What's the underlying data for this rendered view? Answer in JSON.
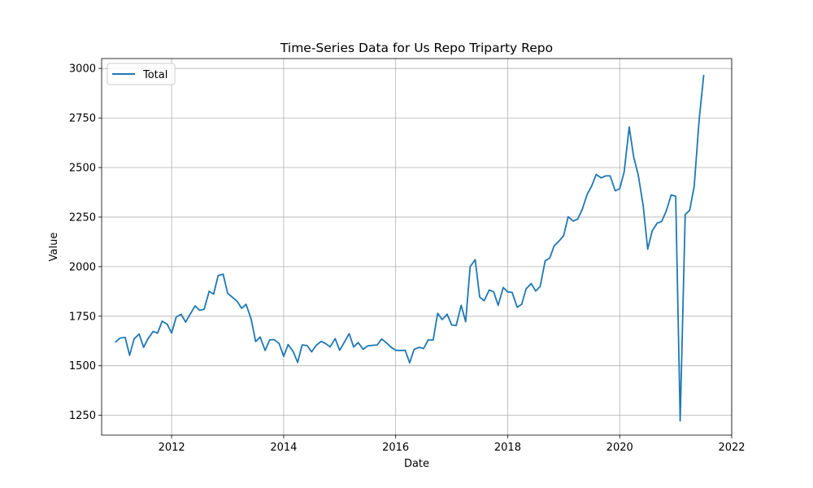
{
  "chart_data": {
    "type": "line",
    "title": "Time-Series Data for Us Repo Triparty Repo",
    "xlabel": "Date",
    "ylabel": "Value",
    "xlim": [
      2010.75,
      2022.0
    ],
    "ylim": [
      1150,
      3050
    ],
    "x_ticks": [
      2012,
      2014,
      2016,
      2018,
      2020,
      2022
    ],
    "y_ticks": [
      1250,
      1500,
      1750,
      2000,
      2250,
      2500,
      2750,
      3000
    ],
    "grid": true,
    "legend_position": "top-left",
    "series": [
      {
        "name": "Total",
        "color": "#1f77b4",
        "points": [
          [
            2011.0,
            1620
          ],
          [
            2011.08,
            1640
          ],
          [
            2011.17,
            1643
          ],
          [
            2011.25,
            1553
          ],
          [
            2011.33,
            1636
          ],
          [
            2011.42,
            1660
          ],
          [
            2011.5,
            1593
          ],
          [
            2011.58,
            1637
          ],
          [
            2011.67,
            1673
          ],
          [
            2011.75,
            1665
          ],
          [
            2011.83,
            1725
          ],
          [
            2011.92,
            1710
          ],
          [
            2012.0,
            1665
          ],
          [
            2012.08,
            1745
          ],
          [
            2012.17,
            1760
          ],
          [
            2012.25,
            1720
          ],
          [
            2012.33,
            1760
          ],
          [
            2012.42,
            1802
          ],
          [
            2012.5,
            1780
          ],
          [
            2012.58,
            1785
          ],
          [
            2012.67,
            1876
          ],
          [
            2012.75,
            1862
          ],
          [
            2012.83,
            1955
          ],
          [
            2012.92,
            1962
          ],
          [
            2013.0,
            1866
          ],
          [
            2013.08,
            1847
          ],
          [
            2013.17,
            1825
          ],
          [
            2013.25,
            1790
          ],
          [
            2013.33,
            1810
          ],
          [
            2013.42,
            1735
          ],
          [
            2013.5,
            1622
          ],
          [
            2013.58,
            1645
          ],
          [
            2013.67,
            1577
          ],
          [
            2013.75,
            1630
          ],
          [
            2013.83,
            1632
          ],
          [
            2013.92,
            1612
          ],
          [
            2014.0,
            1547
          ],
          [
            2014.08,
            1607
          ],
          [
            2014.17,
            1572
          ],
          [
            2014.25,
            1517
          ],
          [
            2014.33,
            1605
          ],
          [
            2014.42,
            1602
          ],
          [
            2014.5,
            1570
          ],
          [
            2014.58,
            1603
          ],
          [
            2014.67,
            1623
          ],
          [
            2014.75,
            1612
          ],
          [
            2014.83,
            1595
          ],
          [
            2014.92,
            1637
          ],
          [
            2015.0,
            1578
          ],
          [
            2015.08,
            1617
          ],
          [
            2015.17,
            1662
          ],
          [
            2015.25,
            1595
          ],
          [
            2015.33,
            1617
          ],
          [
            2015.42,
            1583
          ],
          [
            2015.5,
            1600
          ],
          [
            2015.58,
            1603
          ],
          [
            2015.67,
            1605
          ],
          [
            2015.75,
            1635
          ],
          [
            2015.83,
            1617
          ],
          [
            2015.92,
            1593
          ],
          [
            2016.0,
            1578
          ],
          [
            2016.08,
            1577
          ],
          [
            2016.17,
            1578
          ],
          [
            2016.25,
            1515
          ],
          [
            2016.33,
            1583
          ],
          [
            2016.42,
            1593
          ],
          [
            2016.5,
            1587
          ],
          [
            2016.58,
            1630
          ],
          [
            2016.67,
            1630
          ],
          [
            2016.75,
            1765
          ],
          [
            2016.83,
            1733
          ],
          [
            2016.92,
            1760
          ],
          [
            2017.0,
            1706
          ],
          [
            2017.08,
            1703
          ],
          [
            2017.17,
            1805
          ],
          [
            2017.25,
            1722
          ],
          [
            2017.33,
            2000
          ],
          [
            2017.42,
            2035
          ],
          [
            2017.5,
            1847
          ],
          [
            2017.58,
            1828
          ],
          [
            2017.67,
            1882
          ],
          [
            2017.75,
            1873
          ],
          [
            2017.83,
            1805
          ],
          [
            2017.92,
            1895
          ],
          [
            2018.0,
            1873
          ],
          [
            2018.08,
            1870
          ],
          [
            2018.17,
            1795
          ],
          [
            2018.25,
            1810
          ],
          [
            2018.33,
            1888
          ],
          [
            2018.42,
            1915
          ],
          [
            2018.5,
            1877
          ],
          [
            2018.58,
            1900
          ],
          [
            2018.67,
            2030
          ],
          [
            2018.75,
            2043
          ],
          [
            2018.83,
            2105
          ],
          [
            2018.92,
            2130
          ],
          [
            2019.0,
            2157
          ],
          [
            2019.08,
            2252
          ],
          [
            2019.17,
            2230
          ],
          [
            2019.25,
            2240
          ],
          [
            2019.33,
            2288
          ],
          [
            2019.42,
            2365
          ],
          [
            2019.5,
            2407
          ],
          [
            2019.58,
            2465
          ],
          [
            2019.67,
            2448
          ],
          [
            2019.75,
            2458
          ],
          [
            2019.83,
            2458
          ],
          [
            2019.92,
            2383
          ],
          [
            2020.0,
            2393
          ],
          [
            2020.08,
            2478
          ],
          [
            2020.17,
            2705
          ],
          [
            2020.25,
            2553
          ],
          [
            2020.33,
            2465
          ],
          [
            2020.42,
            2307
          ],
          [
            2020.5,
            2088
          ],
          [
            2020.58,
            2180
          ],
          [
            2020.67,
            2220
          ],
          [
            2020.75,
            2228
          ],
          [
            2020.83,
            2280
          ],
          [
            2020.92,
            2362
          ],
          [
            2021.0,
            2355
          ],
          [
            2021.08,
            1222
          ],
          [
            2021.17,
            2263
          ],
          [
            2021.25,
            2285
          ],
          [
            2021.33,
            2405
          ],
          [
            2021.42,
            2745
          ],
          [
            2021.5,
            2965
          ]
        ]
      }
    ]
  }
}
